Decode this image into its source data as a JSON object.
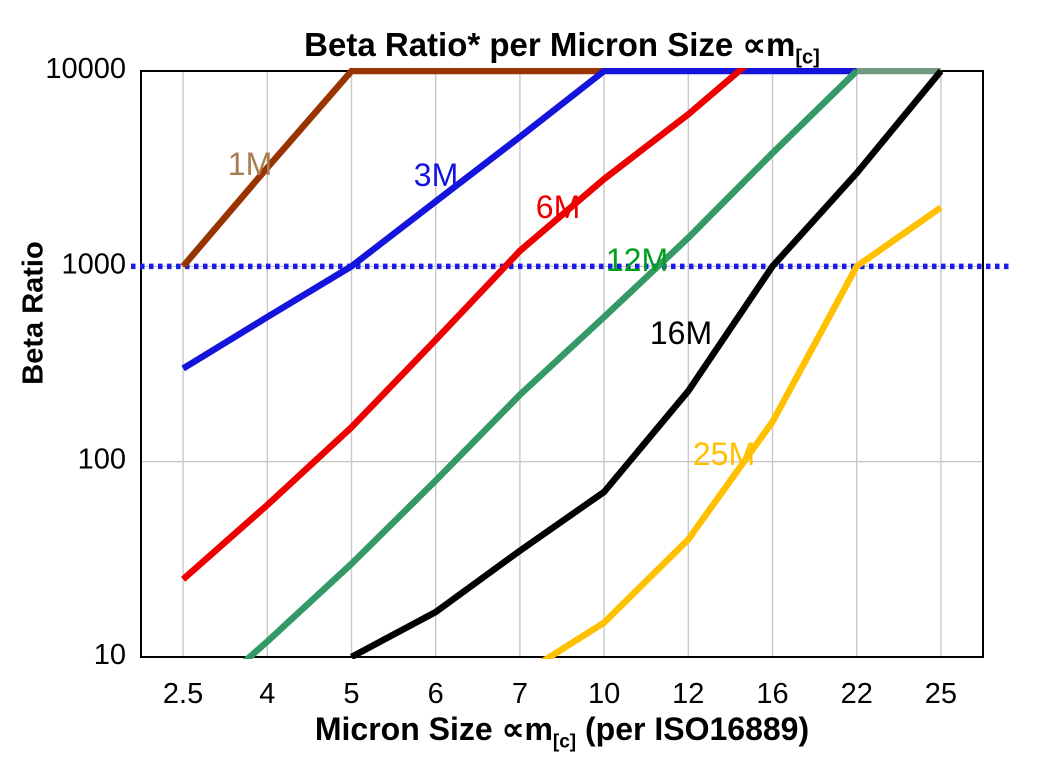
{
  "title": {
    "main": "Beta Ratio* per Micron Size ∝m",
    "sub": "[c]"
  },
  "y_axis": {
    "label": "Beta Ratio"
  },
  "x_axis": {
    "label_main": "Micron Size ∝m",
    "label_sub": "[c]",
    "label_post": " (per ISO16889)"
  },
  "chart_data": {
    "type": "line",
    "title": "Beta Ratio* per Micron Size ∝m[c]",
    "xlabel": "Micron Size ∝m[c] (per ISO16889)",
    "ylabel": "Beta Ratio",
    "x_scale": "categorical",
    "y_scale": "log",
    "ylim": [
      10,
      10000
    ],
    "y_ticks": [
      10000,
      1000,
      100,
      10
    ],
    "categories": [
      "2.5",
      "4",
      "5",
      "6",
      "7",
      "10",
      "12",
      "16",
      "22",
      "25"
    ],
    "grid": {
      "vertical_category_lines": true,
      "horizontal_at": [
        100,
        1000
      ]
    },
    "reference_line": {
      "value": 1000,
      "style": "dotted",
      "color": "#1C1CE8",
      "note": "Beta 1000 reference line"
    },
    "legend_position": "inline-labels-on-lines",
    "series": [
      {
        "name": "1M",
        "color": "#993300",
        "label_color": "#A87C50",
        "values": [
          1000,
          3200,
          10000,
          10000,
          10000,
          10000,
          null,
          null,
          null,
          null
        ]
      },
      {
        "name": "3M",
        "color": "#1414DC",
        "label_color": "#1414DC",
        "values": [
          300,
          550,
          1000,
          2150,
          4600,
          10000,
          10000,
          10000,
          10000,
          null
        ]
      },
      {
        "name": "6M",
        "color": "#EC0000",
        "label_color": "#EC0000",
        "values": [
          25,
          60,
          150,
          420,
          1200,
          2800,
          6000,
          14000,
          null,
          null
        ]
      },
      {
        "name": "12M",
        "color": "#339966",
        "label_color": "#00A01E",
        "top_flat_color": "#6F9A7E",
        "values": [
          5,
          12,
          30,
          80,
          220,
          550,
          1400,
          3800,
          10000,
          10000
        ]
      },
      {
        "name": "16M",
        "color": "#000000",
        "label_color": "#000000",
        "values": [
          null,
          null,
          10,
          17,
          35,
          70,
          230,
          1000,
          3000,
          10000
        ]
      },
      {
        "name": "25M",
        "color": "#FFC000",
        "label_color": "#FFC000",
        "values": [
          null,
          null,
          null,
          null,
          8,
          15,
          40,
          160,
          1000,
          2000
        ]
      }
    ]
  }
}
